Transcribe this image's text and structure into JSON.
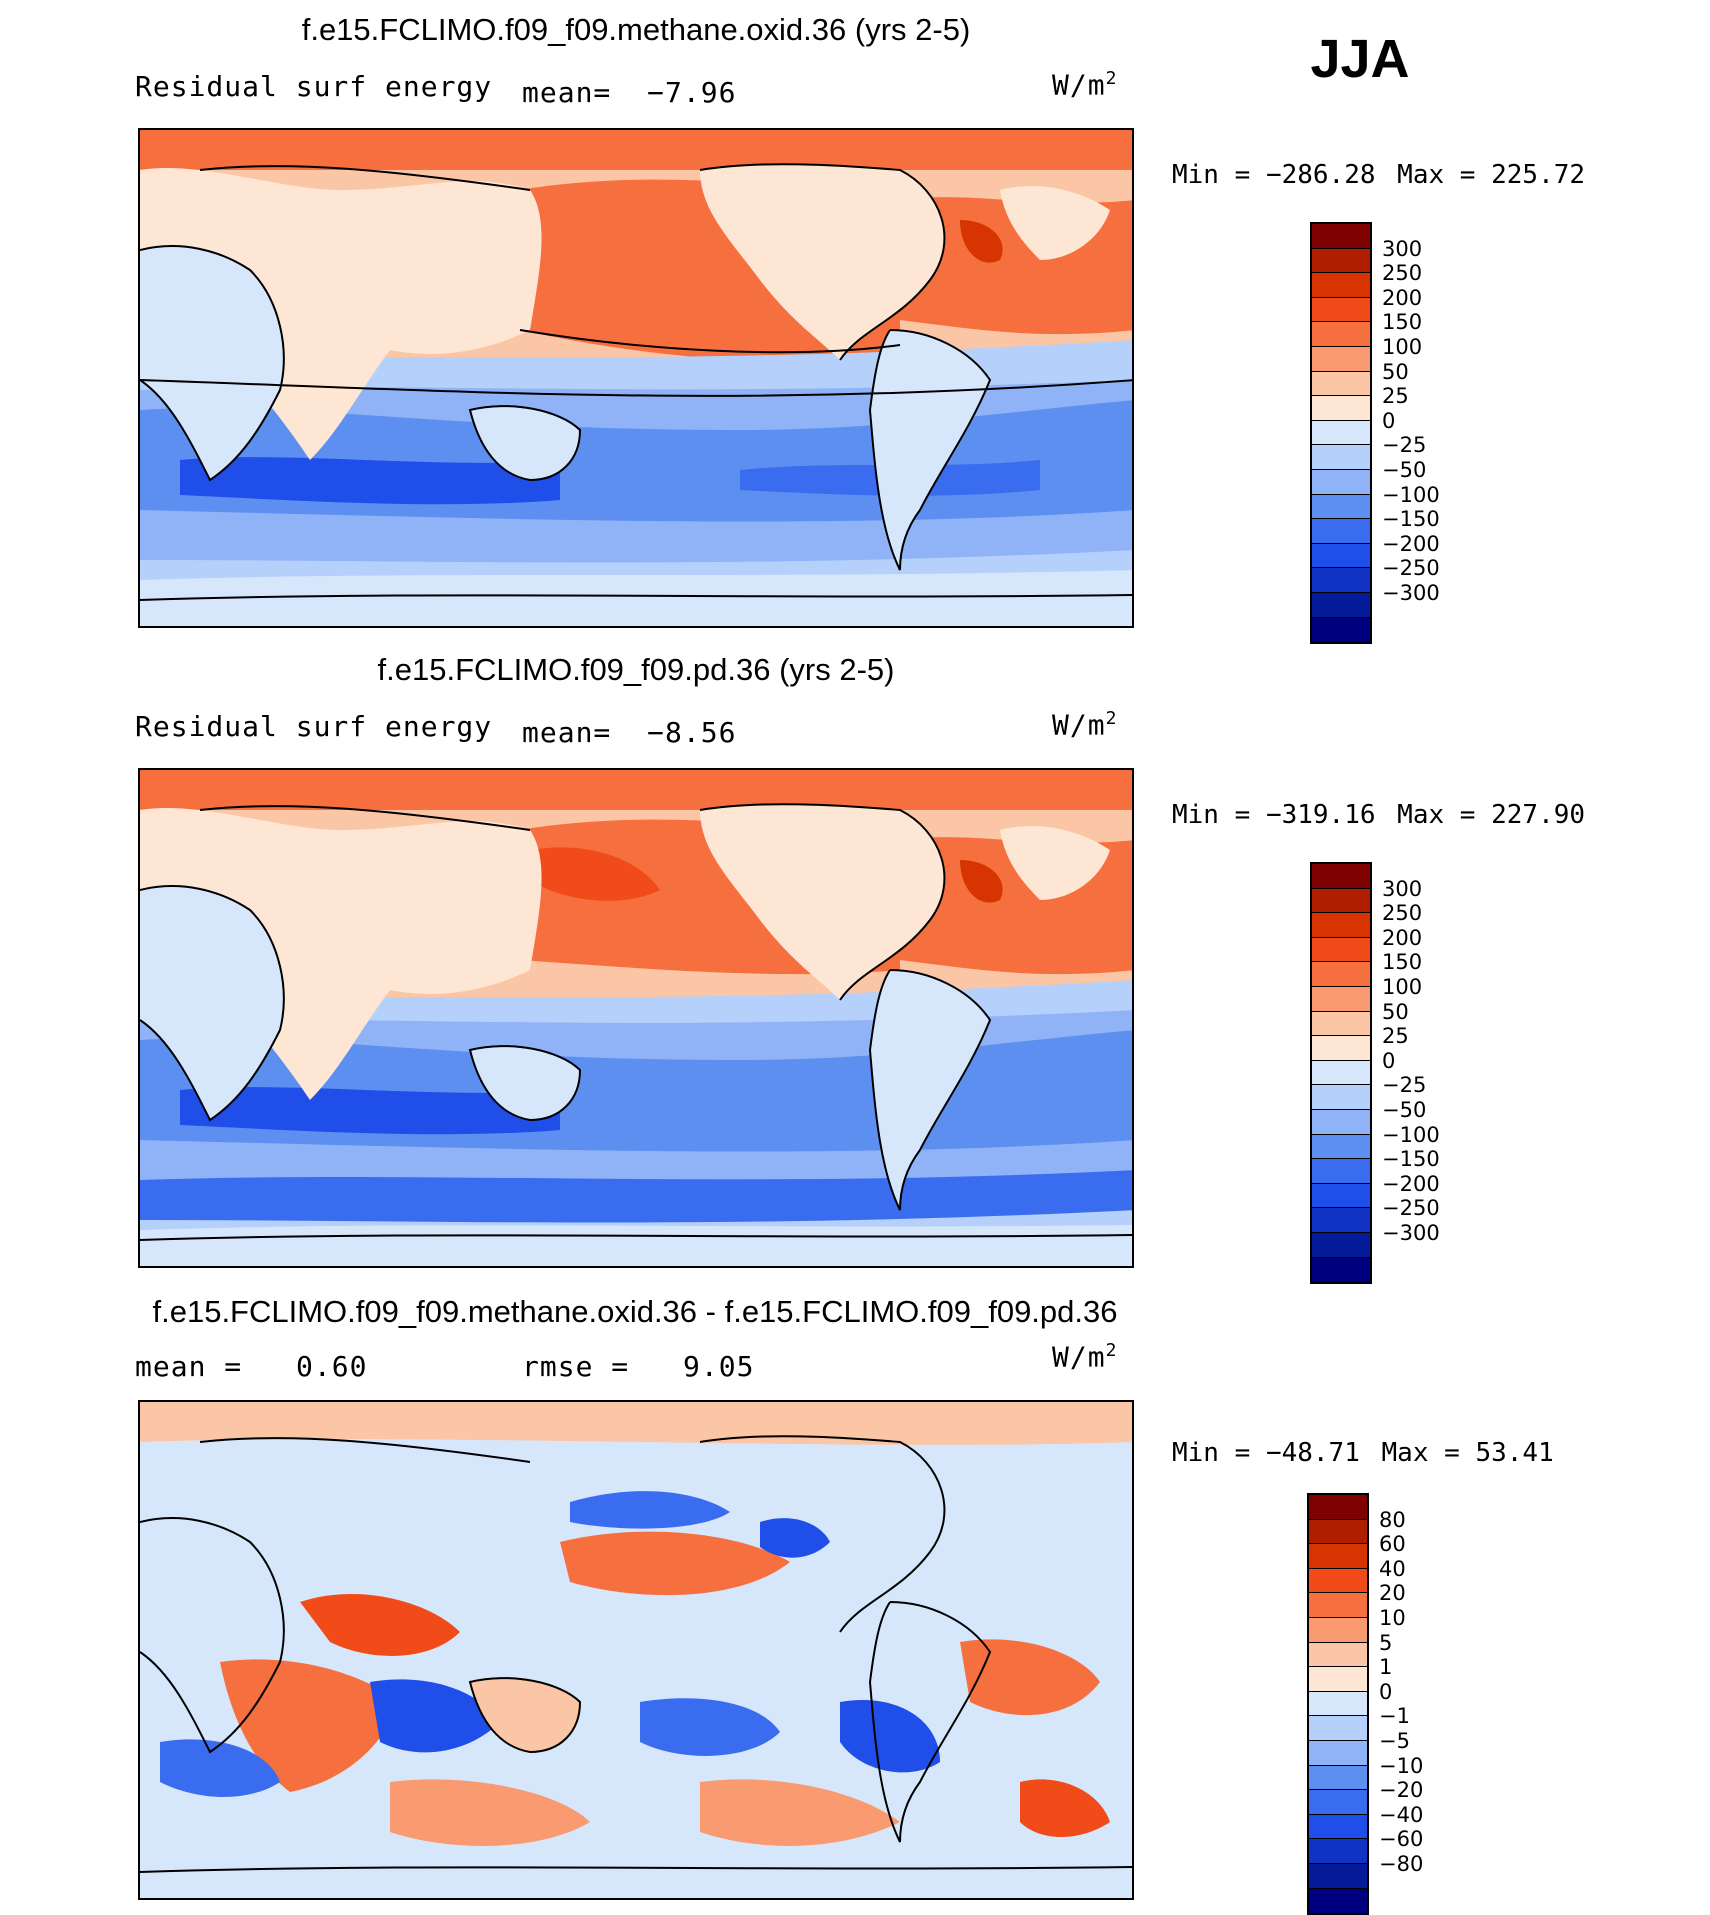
{
  "season": "JJA",
  "colors": {
    "warm": [
      "#7f0000",
      "#b01e00",
      "#d63400",
      "#f24b1a",
      "#f6703f",
      "#f99a70",
      "#fbc6a5",
      "#fee6d4"
    ],
    "cool": [
      "#d6e7fb",
      "#b5d0fa",
      "#8fb3f6",
      "#5d8ff1",
      "#3a6cf0",
      "#1f4fe8",
      "#1033c4",
      "#051a99",
      "#00007f"
    ]
  },
  "panels": [
    {
      "title": "f.e15.FCLIMO.f09_f09.methane.oxid.36 (yrs 2-5)",
      "left_label": "Residual surf energy",
      "stat1_label": "mean=",
      "stat1_value": "−7.96",
      "stat2_label": "",
      "stat2_value": "",
      "units": "W/m",
      "units_exp": "2",
      "min_label": "Min =",
      "min_value": "−286.28",
      "max_label": "Max =",
      "max_value": "225.72",
      "colorbar_levels": [
        "300",
        "250",
        "200",
        "150",
        "100",
        "50",
        "25",
        "0",
        "−25",
        "−50",
        "−100",
        "−150",
        "−200",
        "−250",
        "−300"
      ]
    },
    {
      "title": "f.e15.FCLIMO.f09_f09.pd.36 (yrs 2-5)",
      "left_label": "Residual surf energy",
      "stat1_label": "mean=",
      "stat1_value": "−8.56",
      "stat2_label": "",
      "stat2_value": "",
      "units": "W/m",
      "units_exp": "2",
      "min_label": "Min =",
      "min_value": "−319.16",
      "max_label": "Max =",
      "max_value": "227.90",
      "colorbar_levels": [
        "300",
        "250",
        "200",
        "150",
        "100",
        "50",
        "25",
        "0",
        "−25",
        "−50",
        "−100",
        "−150",
        "−200",
        "−250",
        "−300"
      ]
    },
    {
      "title": "f.e15.FCLIMO.f09_f09.methane.oxid.36 - f.e15.FCLIMO.f09_f09.pd.36",
      "left_label": "",
      "stat1_label": "mean =",
      "stat1_value": "0.60",
      "stat2_label": "rmse =",
      "stat2_value": "9.05",
      "units": "W/m",
      "units_exp": "2",
      "min_label": "Min =",
      "min_value": "−48.71",
      "max_label": "Max =",
      "max_value": "53.41",
      "colorbar_levels": [
        "80",
        "60",
        "40",
        "20",
        "10",
        "5",
        "1",
        "0",
        "−1",
        "−5",
        "−10",
        "−20",
        "−40",
        "−60",
        "−80"
      ]
    }
  ]
}
